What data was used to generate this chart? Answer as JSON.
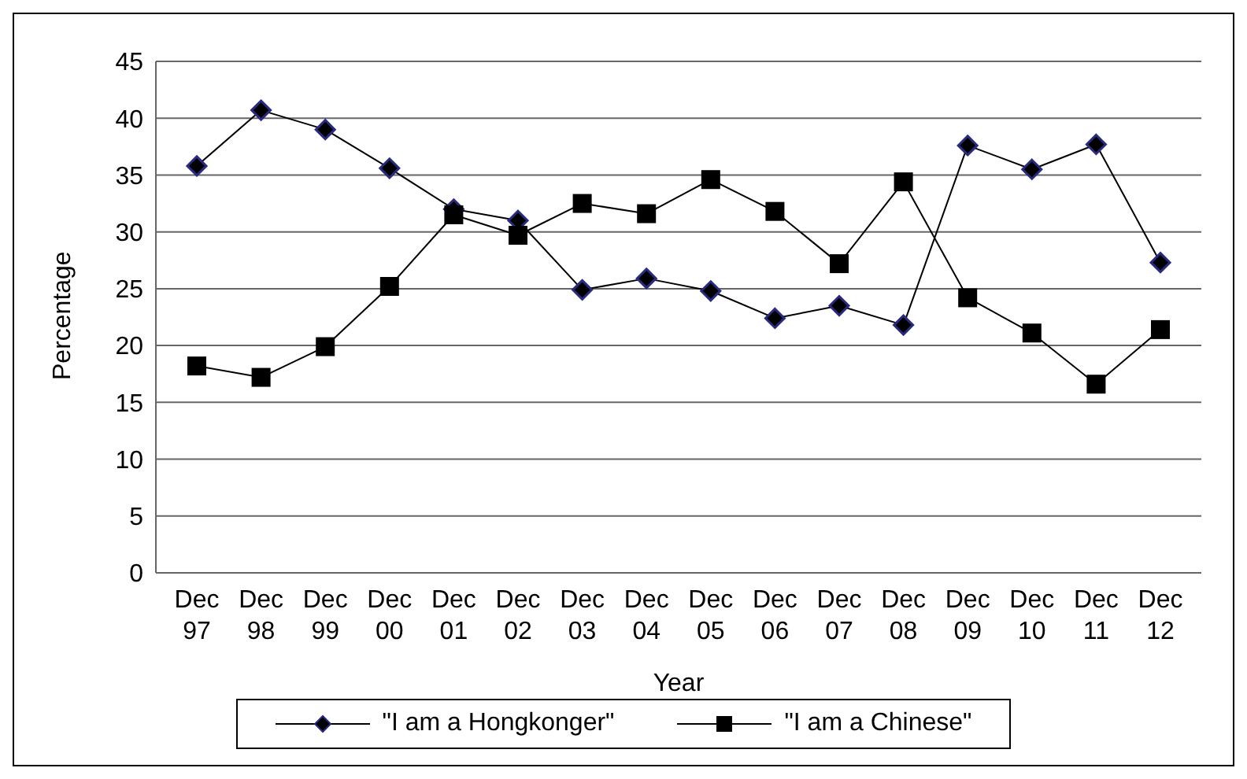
{
  "chart_data": {
    "type": "line",
    "xlabel": "Year",
    "ylabel": "Percentage",
    "categories": [
      "Dec 97",
      "Dec 98",
      "Dec 99",
      "Dec 00",
      "Dec 01",
      "Dec 02",
      "Dec 03",
      "Dec 04",
      "Dec 05",
      "Dec 06",
      "Dec 07",
      "Dec 08",
      "Dec 09",
      "Dec 10",
      "Dec 11",
      "Dec 12"
    ],
    "series": [
      {
        "name": "\"I am a Hongkonger\"",
        "color": "#000000",
        "marker": "diamond",
        "values": [
          35.8,
          40.7,
          39,
          35.6,
          32,
          31,
          24.9,
          25.9,
          24.8,
          22.4,
          23.5,
          21.8,
          37.6,
          35.5,
          37.7,
          27.3
        ]
      },
      {
        "name": "\"I am a Chinese\"",
        "color": "#000000",
        "marker": "square",
        "values": [
          18.2,
          17.2,
          19.9,
          25.2,
          31.5,
          29.7,
          32.5,
          31.6,
          34.6,
          31.8,
          27.2,
          34.4,
          24.2,
          21.1,
          16.6,
          21.4
        ]
      }
    ],
    "ylim": [
      0,
      45
    ],
    "yticks": [
      0,
      5,
      10,
      15,
      20,
      25,
      30,
      35,
      40,
      45
    ],
    "grid": "y",
    "legend": "bottom"
  }
}
